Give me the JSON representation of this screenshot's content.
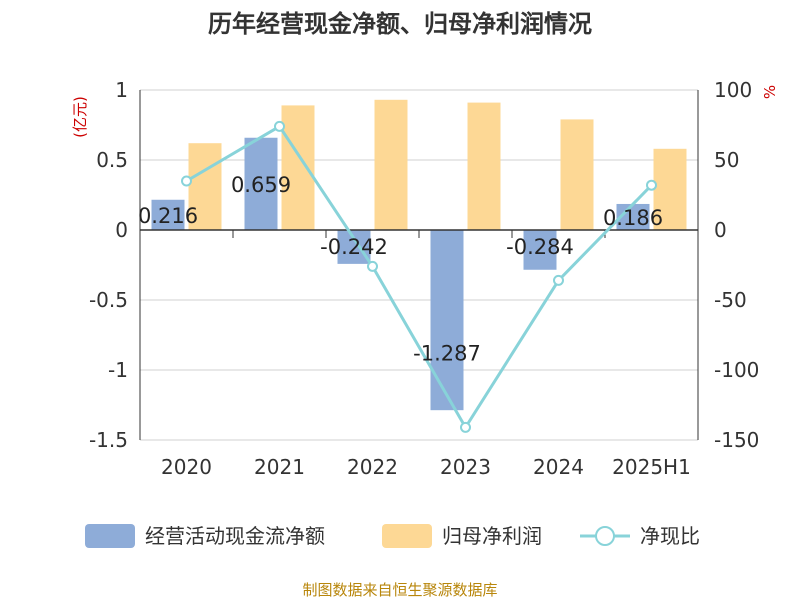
{
  "title": "历年经营现金净额、归母净利润情况",
  "source": "制图数据来自恒生聚源数据库",
  "chart_data": {
    "type": "bar",
    "categories": [
      "2020",
      "2021",
      "2022",
      "2023",
      "2024",
      "2025H1"
    ],
    "left_axis": {
      "unit": "(亿元)",
      "ticks": [
        "1",
        "0.5",
        "0",
        "-0.5",
        "-1",
        "-1.5"
      ],
      "range": [
        -1.5,
        1
      ]
    },
    "right_axis": {
      "unit": "%",
      "ticks": [
        "100",
        "50",
        "0",
        "-50",
        "-100",
        "-150"
      ],
      "range": [
        -150,
        100
      ]
    },
    "series": [
      {
        "name": "经营活动现金流净额",
        "kind": "bar",
        "axis": "left",
        "color": "#8eacd8",
        "values": [
          0.216,
          0.659,
          -0.242,
          -1.287,
          -0.284,
          0.186
        ],
        "labels": [
          "0.216",
          "0.659",
          "-0.242",
          "-1.287",
          "-0.284",
          "0.186"
        ]
      },
      {
        "name": "归母净利润",
        "kind": "bar",
        "axis": "left",
        "color": "#fdd895",
        "values": [
          0.62,
          0.89,
          0.93,
          0.91,
          0.79,
          0.58
        ]
      },
      {
        "name": "净现比",
        "kind": "line",
        "axis": "right",
        "color": "#88d3d9",
        "values": [
          35,
          74,
          -26,
          -141,
          -36,
          32
        ]
      }
    ],
    "grid": true,
    "legend_position": "bottom"
  }
}
